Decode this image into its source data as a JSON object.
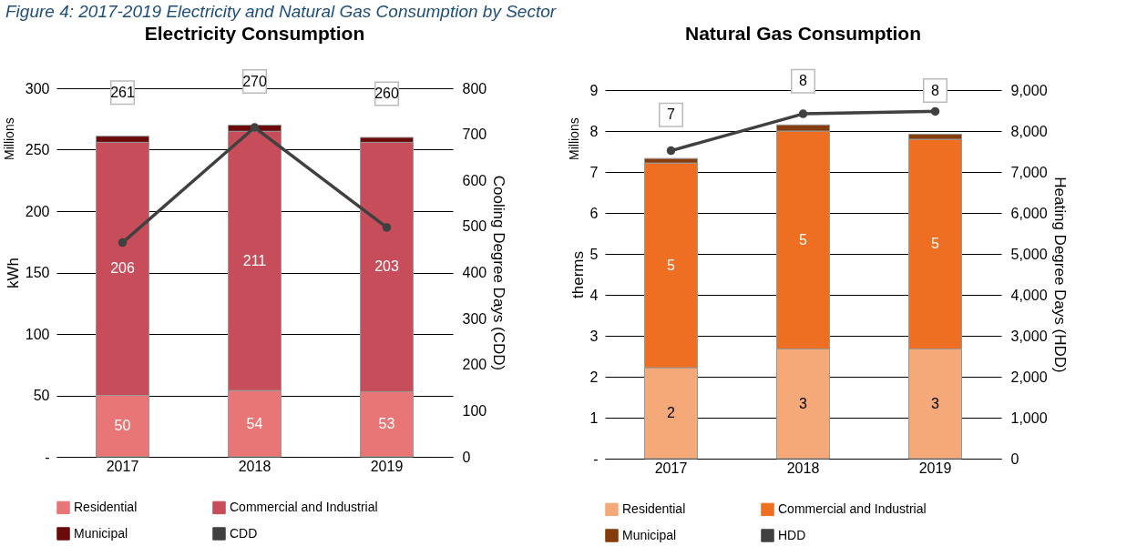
{
  "chart_data": [
    {
      "type": "bar",
      "title": "Electricity Consumption",
      "ylabel": "kWh",
      "y2label": "Cooling Degree Days (CDD)",
      "annotations": [
        "Millions",
        "Figure 4: 2017-2019 Electricity and Natural Gas Consumption by Sector"
      ],
      "categories": [
        "2017",
        "2018",
        "2019"
      ],
      "stacked": true,
      "grid": "y",
      "legend": "bottom",
      "marker": "circle",
      "ylim": [
        0,
        300
      ],
      "yticks": [
        {
          "value": 0,
          "label": "-"
        },
        50,
        100,
        150,
        200,
        250,
        300
      ],
      "y2lim": [
        0,
        800
      ],
      "y2ticks": [
        0,
        100,
        200,
        300,
        400,
        500,
        600,
        700,
        800
      ],
      "series": [
        {
          "name": "Residential",
          "color": "#e87677",
          "values": [
            50,
            54,
            53
          ],
          "value_labels": [
            "50",
            "54",
            "53"
          ]
        },
        {
          "name": "Commercial and Industrial",
          "color": "#c74d5a",
          "values": [
            206,
            211,
            203
          ],
          "value_labels": [
            "206",
            "211",
            "203"
          ]
        },
        {
          "name": "Municipal",
          "color": "#6b0a0a",
          "values": [
            5,
            5,
            4
          ]
        },
        {
          "name": "CDD",
          "type": "line",
          "axis": "y2",
          "color": "#404040",
          "values": [
            465,
            715,
            498
          ]
        }
      ],
      "totals": [
        "261",
        "270",
        "260"
      ]
    },
    {
      "type": "bar",
      "title": "Natural Gas Consumption",
      "ylabel": "therms",
      "y2label": "Heating Degree Days (HDD)",
      "annotations": [
        "Millions"
      ],
      "categories": [
        "2017",
        "2018",
        "2019"
      ],
      "stacked": true,
      "grid": "y",
      "legend": "bottom",
      "marker": "circle",
      "ylim": [
        0,
        9
      ],
      "yticks": [
        {
          "value": 0,
          "label": "-"
        },
        1,
        2,
        3,
        4,
        5,
        6,
        7,
        8,
        9
      ],
      "y2lim": [
        0,
        9000
      ],
      "y2ticks": [
        0,
        {
          "value": 1000,
          "label": "1,000"
        },
        {
          "value": 2000,
          "label": "2,000"
        },
        {
          "value": 3000,
          "label": "3,000"
        },
        {
          "value": 4000,
          "label": "4,000"
        },
        {
          "value": 5000,
          "label": "5,000"
        },
        {
          "value": 6000,
          "label": "6,000"
        },
        {
          "value": 7000,
          "label": "7,000"
        },
        {
          "value": 8000,
          "label": "8,000"
        },
        {
          "value": 9000,
          "label": "9,000"
        }
      ],
      "series": [
        {
          "name": "Residential",
          "color": "#f5a878",
          "values": [
            2.22,
            2.68,
            2.68
          ],
          "value_labels": [
            "2",
            "3",
            "3"
          ]
        },
        {
          "name": "Commercial and Industrial",
          "color": "#ef6f22",
          "values": [
            5.0,
            5.32,
            5.12
          ],
          "value_labels": [
            "5",
            "5",
            "5"
          ]
        },
        {
          "name": "Municipal",
          "color": "#843c0c",
          "values": [
            0.11,
            0.15,
            0.12
          ]
        },
        {
          "name": "HDD",
          "type": "line",
          "axis": "y2",
          "color": "#404040",
          "values": [
            7520,
            8420,
            8480
          ]
        }
      ],
      "totals": [
        "7",
        "8",
        "8"
      ]
    }
  ]
}
